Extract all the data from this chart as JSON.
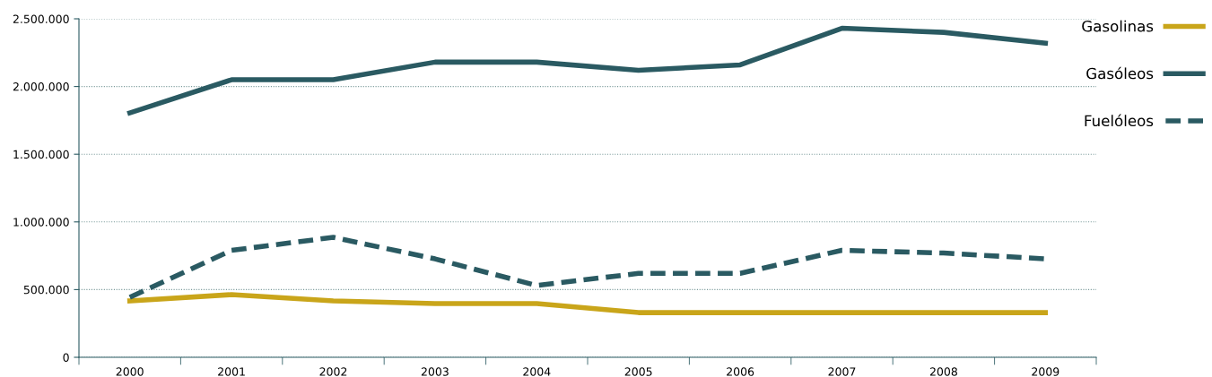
{
  "chart_data": {
    "type": "line",
    "categories": [
      "2000",
      "2001",
      "2002",
      "2003",
      "2004",
      "2005",
      "2006",
      "2007",
      "2008",
      "2009"
    ],
    "series": [
      {
        "name": "Gasolinas",
        "color": "#c9a51a",
        "line_style": "solid",
        "values": [
          417000,
          463000,
          417000,
          397000,
          397000,
          330000,
          330000,
          330000,
          330000,
          330000
        ]
      },
      {
        "name": "Gasóleos",
        "color": "#2a5a62",
        "line_style": "solid",
        "values": [
          1805000,
          2050000,
          2050000,
          2180000,
          2180000,
          2120000,
          2160000,
          2430000,
          2400000,
          2320000
        ]
      },
      {
        "name": "Fuelóleos",
        "color": "#2a5a62",
        "line_style": "dashed",
        "values": [
          443000,
          790000,
          886000,
          727000,
          530000,
          620000,
          620000,
          790000,
          770000,
          727000
        ]
      }
    ],
    "ylim": [
      0,
      2500000
    ],
    "yticks": [
      {
        "value": 0,
        "label": "0"
      },
      {
        "value": 500000,
        "label": "500.000"
      },
      {
        "value": 1000000,
        "label": "1.000.000"
      },
      {
        "value": 1500000,
        "label": "1.500.000"
      },
      {
        "value": 2000000,
        "label": "2.000.000"
      },
      {
        "value": 2500000,
        "label": "2.500.000"
      }
    ],
    "grid": "y",
    "legend": "right",
    "marker": "none"
  }
}
